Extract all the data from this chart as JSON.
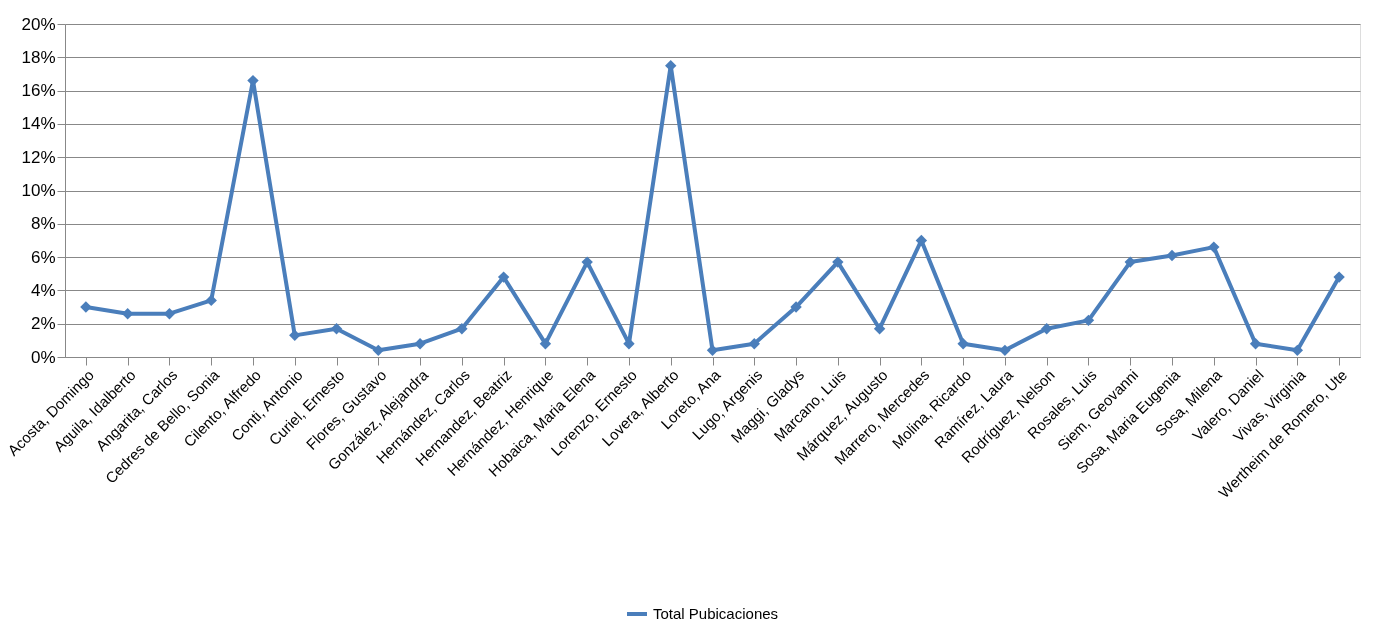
{
  "chart_data": {
    "type": "line",
    "categories": [
      "Acosta, Domingo",
      "Aguila, Idalberto",
      "Angarita, Carlos",
      "Cedres de Bello, Sonia",
      "Cilento, Alfredo",
      "Conti, Antonio",
      "Curiel, Ernesto",
      "Flores, Gustavo",
      "González, Alejandra",
      "Hernández,  Carlos",
      "Hernandez,  Beatriz",
      "Hernández,  Henrique",
      "Hobaica, Maria Elena",
      "Lorenzo, Ernesto",
      "Lovera, Alberto",
      "Loreto, Ana",
      "Lugo, Argenis",
      "Maggi, Gladys",
      "Marcano, Luis",
      "Márquez, Augusto",
      "Marrero, Mercedes",
      "Molina, Ricardo",
      "Ramírez,  Laura",
      "Rodríguez, Nelson",
      "Rosales, Luis",
      "Siem, Geovanni",
      "Sosa, Maria Eugenia",
      "Sosa, Milena",
      "Valero, Daniel",
      "Vivas, Virginia",
      "Wertheim de Romero, Ute"
    ],
    "series": [
      {
        "name": "Total Pubicaciones",
        "color": "#4a7ebb",
        "values": [
          3.0,
          2.6,
          2.6,
          3.4,
          16.6,
          1.3,
          1.7,
          0.4,
          0.8,
          1.7,
          4.8,
          0.8,
          5.7,
          0.8,
          17.5,
          0.4,
          0.8,
          3.0,
          5.7,
          1.7,
          7.0,
          0.8,
          0.4,
          1.7,
          2.2,
          5.7,
          6.1,
          6.6,
          0.8,
          0.4,
          4.8
        ]
      }
    ],
    "ylim": [
      0,
      20
    ],
    "yticks": [
      {
        "value": 0,
        "label": "0%"
      },
      {
        "value": 2,
        "label": "2%"
      },
      {
        "value": 4,
        "label": "4%"
      },
      {
        "value": 6,
        "label": "6%"
      },
      {
        "value": 8,
        "label": "8%"
      },
      {
        "value": 10,
        "label": "10%"
      },
      {
        "value": 12,
        "label": "12%"
      },
      {
        "value": 14,
        "label": "14%"
      },
      {
        "value": 16,
        "label": "16%"
      },
      {
        "value": 18,
        "label": "18%"
      },
      {
        "value": 20,
        "label": "20%"
      }
    ],
    "grid": "y",
    "legend": "bottom",
    "marker": "diamond",
    "line_style": "solid"
  }
}
